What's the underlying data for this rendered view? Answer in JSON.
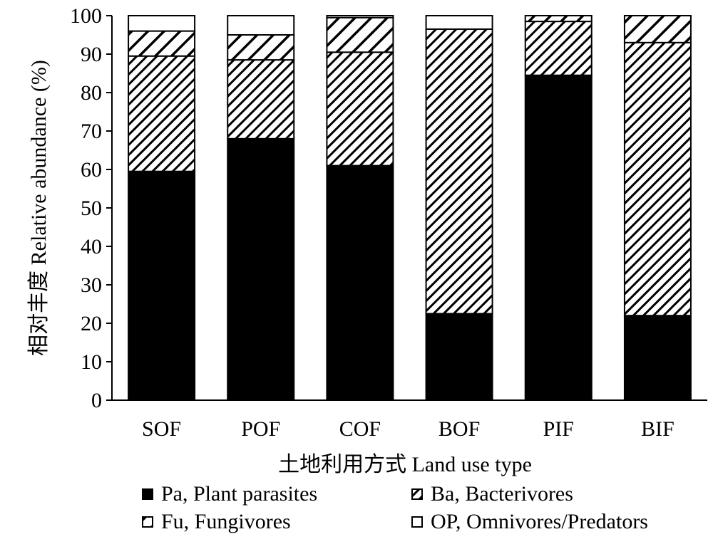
{
  "chart_data": {
    "type": "bar",
    "stacked": true,
    "categories": [
      "SOF",
      "POF",
      "COF",
      "BOF",
      "PIF",
      "BIF"
    ],
    "series": [
      {
        "name": "Pa,  Plant parasites",
        "fill": "solid",
        "color": "#000000",
        "values": [
          59.5,
          68,
          61,
          22.5,
          84.5,
          22
        ]
      },
      {
        "name": "Ba, Bacterivores",
        "fill": "dense-hatch",
        "color": "#000000",
        "values": [
          30,
          20.5,
          29.5,
          74,
          14,
          71
        ]
      },
      {
        "name": "Fu, Fungivores",
        "fill": "sparse-hatch",
        "color": "#000000",
        "values": [
          6.5,
          6.5,
          9,
          0,
          1.5,
          7
        ]
      },
      {
        "name": "OP, Omnivores/Predators",
        "fill": "none",
        "color": "#ffffff",
        "values": [
          4,
          5,
          0.5,
          3.5,
          0,
          0
        ]
      }
    ],
    "ylim": [
      0,
      100
    ],
    "yticks": [
      "0",
      "10",
      "20",
      "30",
      "40",
      "50",
      "60",
      "70",
      "80",
      "90",
      "100"
    ],
    "xlabel": "土地利用方式 Land use type",
    "ylabel": "相对丰度 Relative abundance (%)",
    "legend_position": "bottom"
  }
}
